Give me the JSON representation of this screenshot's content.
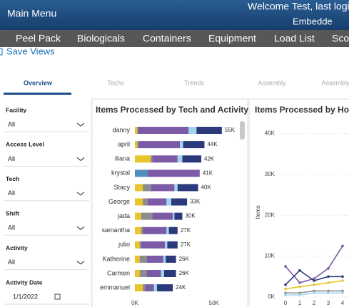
{
  "header": {
    "title": "Main Menu",
    "welcome": "Welcome Test, last login",
    "subtitle": "Embedde"
  },
  "nav": [
    "Peel Pack",
    "Biologicals",
    "Containers",
    "Equipment",
    "Load List",
    "Sco"
  ],
  "save_views": "Save Views",
  "tabs": [
    "Overview",
    "Techs",
    "Trends",
    "Assembly",
    "Assembly"
  ],
  "filters": [
    {
      "label": "Facility",
      "value": "All"
    },
    {
      "label": "Access Level",
      "value": "All"
    },
    {
      "label": "Tech",
      "value": "All"
    },
    {
      "label": "Shift",
      "value": "All"
    },
    {
      "label": "Activity",
      "value": "All"
    },
    {
      "label": "Activity Date",
      "value": "1/1/2022"
    }
  ],
  "chart_data": [
    {
      "type": "stacked_bar_horizontal",
      "title": "Items Processed by Tech and Activity",
      "categories": [
        "danny",
        "april",
        "iliana",
        "krystal",
        "Stacy",
        "George",
        "jada",
        "samantha",
        "julio",
        "Katherine",
        "Carmen",
        "emmanuel"
      ],
      "series": [
        {
          "color": "#e8c52a",
          "values": [
            1500,
            1500,
            10000,
            0,
            5000,
            5000,
            4000,
            4000,
            3000,
            3000,
            3000,
            5000
          ]
        },
        {
          "color": "#8c8c8c",
          "values": [
            500,
            1000,
            1000,
            0,
            5000,
            3000,
            7000,
            1000,
            1000,
            4500,
            4500,
            1500
          ]
        },
        {
          "color": "#4e8fc0",
          "values": [
            0,
            0,
            0,
            8000,
            0,
            0,
            0,
            0,
            0,
            0,
            0,
            0
          ]
        },
        {
          "color": "#7b5aa6",
          "values": [
            32000,
            26000,
            16000,
            33000,
            15000,
            12000,
            13000,
            15000,
            15000,
            10500,
            9000,
            5500
          ]
        },
        {
          "color": "#9fd3ee",
          "values": [
            5000,
            2000,
            3000,
            0,
            2000,
            3000,
            1000,
            1500,
            1500,
            1500,
            2000,
            2000
          ]
        },
        {
          "color": "#2c3a7c",
          "values": [
            16000,
            13500,
            12000,
            0,
            13000,
            10000,
            5000,
            5500,
            6500,
            6500,
            7500,
            10000
          ]
        }
      ],
      "value_labels": [
        "55K",
        "44K",
        "42K",
        "41K",
        "40K",
        "33K",
        "30K",
        "27K",
        "27K",
        "26K",
        "26K",
        "24K"
      ],
      "xlim": [
        0,
        65000
      ],
      "xticks": [
        {
          "value": 0,
          "label": "0K"
        },
        {
          "value": 50000,
          "label": "50K"
        }
      ]
    },
    {
      "type": "line",
      "title": "Items Processed by Hou",
      "y_label": "Items",
      "x": [
        0,
        1,
        2,
        3,
        4
      ],
      "series": [
        {
          "color": "#7b5aa6",
          "values": [
            7500,
            3500,
            4500,
            7000,
            12500
          ]
        },
        {
          "color": "#2c3a7c",
          "values": [
            3000,
            6500,
            4000,
            5000,
            5000
          ]
        },
        {
          "color": "#e8c52a",
          "values": [
            2000,
            2500,
            3000,
            3500,
            4000
          ]
        },
        {
          "color": "#8c8c8c",
          "values": [
            1000,
            1000,
            1500,
            1500,
            1500
          ]
        },
        {
          "color": "#9fd3ee",
          "values": [
            500,
            500,
            1000,
            1000,
            1000
          ]
        }
      ],
      "xlim": [
        0,
        4.45
      ],
      "xticks": [
        0,
        1,
        2,
        3,
        4
      ],
      "ylim": [
        0,
        42000
      ],
      "yticks": [
        {
          "value": 0,
          "label": "0K"
        },
        {
          "value": 10000,
          "label": "10K"
        },
        {
          "value": 20000,
          "label": "20K"
        },
        {
          "value": 30000,
          "label": "30K"
        },
        {
          "value": 40000,
          "label": "40K"
        }
      ],
      "grid": true
    }
  ]
}
